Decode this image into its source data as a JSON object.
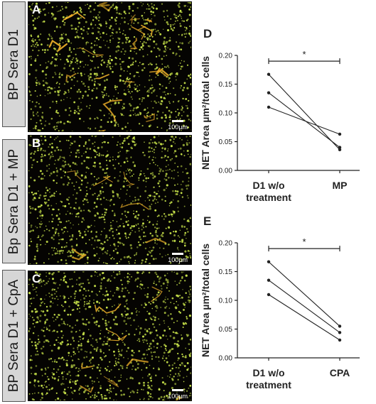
{
  "figure": {
    "panels": [
      {
        "letter": "A",
        "side_label": "BP Sera D1",
        "scale_label": "100µm",
        "seed": 7,
        "fibers": 18
      },
      {
        "letter": "B",
        "side_label": "Bp Sera D1 + MP",
        "scale_label": "100µm",
        "seed": 23,
        "fibers": 6
      },
      {
        "letter": "C",
        "side_label": "BP Sera D1 + CpA",
        "scale_label": "100µm",
        "seed": 41,
        "fibers": 8
      }
    ],
    "colors": {
      "nucleus": "#c8e34a",
      "net_fiber": "#f2b32a",
      "background": "#050402",
      "tab_fill": "#d6d6d6"
    }
  },
  "chart_data": [
    {
      "letter": "D",
      "type": "line",
      "ylabel": "NET Area µm²/total cells",
      "categories": [
        "D1 w/o\ntreatment",
        "MP"
      ],
      "ylim": [
        0,
        0.2
      ],
      "yticks": [
        "0.00",
        "0.05",
        "0.10",
        "0.15",
        "0.20"
      ],
      "series": [
        {
          "values": [
            0.167,
            0.036
          ]
        },
        {
          "values": [
            0.135,
            0.04
          ]
        },
        {
          "values": [
            0.11,
            0.063
          ]
        }
      ],
      "significance": "*"
    },
    {
      "letter": "E",
      "type": "line",
      "ylabel": "NET Area µm²/total cells",
      "categories": [
        "D1 w/o\ntreatment",
        "CPA"
      ],
      "ylim": [
        0,
        0.2
      ],
      "yticks": [
        "0.00",
        "0.05",
        "0.10",
        "0.15",
        "0.20"
      ],
      "series": [
        {
          "values": [
            0.167,
            0.055
          ]
        },
        {
          "values": [
            0.135,
            0.044
          ]
        },
        {
          "values": [
            0.11,
            0.031
          ]
        }
      ],
      "significance": "*"
    }
  ]
}
